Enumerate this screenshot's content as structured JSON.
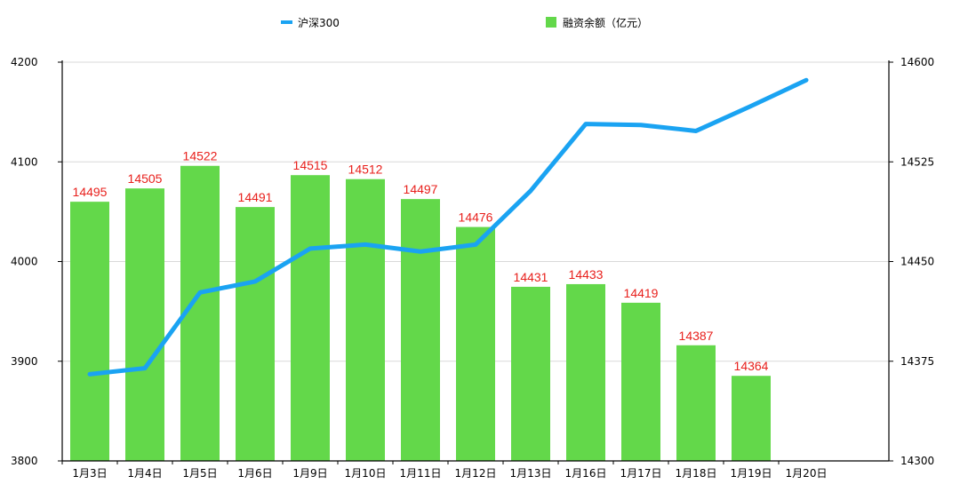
{
  "chart_data": {
    "type": "bar",
    "categories": [
      "1月3日",
      "1月4日",
      "1月5日",
      "1月6日",
      "1月9日",
      "1月10日",
      "1月11日",
      "1月12日",
      "1月13日",
      "1月16日",
      "1月17日",
      "1月18日",
      "1月19日",
      "1月20日"
    ],
    "series": [
      {
        "name": "融资余额（亿元）",
        "type": "bar",
        "axis": "right",
        "color": "#63d84a",
        "label_color": "#e8201c",
        "values": [
          14495,
          14505,
          14522,
          14491,
          14515,
          14512,
          14497,
          14476,
          14431,
          14433,
          14419,
          14387,
          14364,
          null
        ],
        "labels": [
          "14495",
          "14505",
          "14522",
          "14491",
          "14515",
          "14512",
          "14497",
          "14476",
          "14431",
          "14433",
          "14419",
          "14387",
          "14364",
          ""
        ]
      },
      {
        "name": "沪深300",
        "type": "line",
        "axis": "left",
        "color": "#1aa3f2",
        "values": [
          3887,
          3893,
          3969,
          3980,
          4013,
          4017,
          4010,
          4017,
          4071,
          4138,
          4137,
          4131,
          4156,
          4182
        ]
      }
    ],
    "y_left": {
      "min": 3800,
      "max": 4200,
      "ticks": [
        "3800",
        "3900",
        "4000",
        "4100",
        "4200"
      ]
    },
    "y_right": {
      "min": 14300,
      "max": 14600,
      "ticks": [
        "14300",
        "14375",
        "14450",
        "14525",
        "14600"
      ]
    },
    "grid": true,
    "legend_position": "top"
  }
}
